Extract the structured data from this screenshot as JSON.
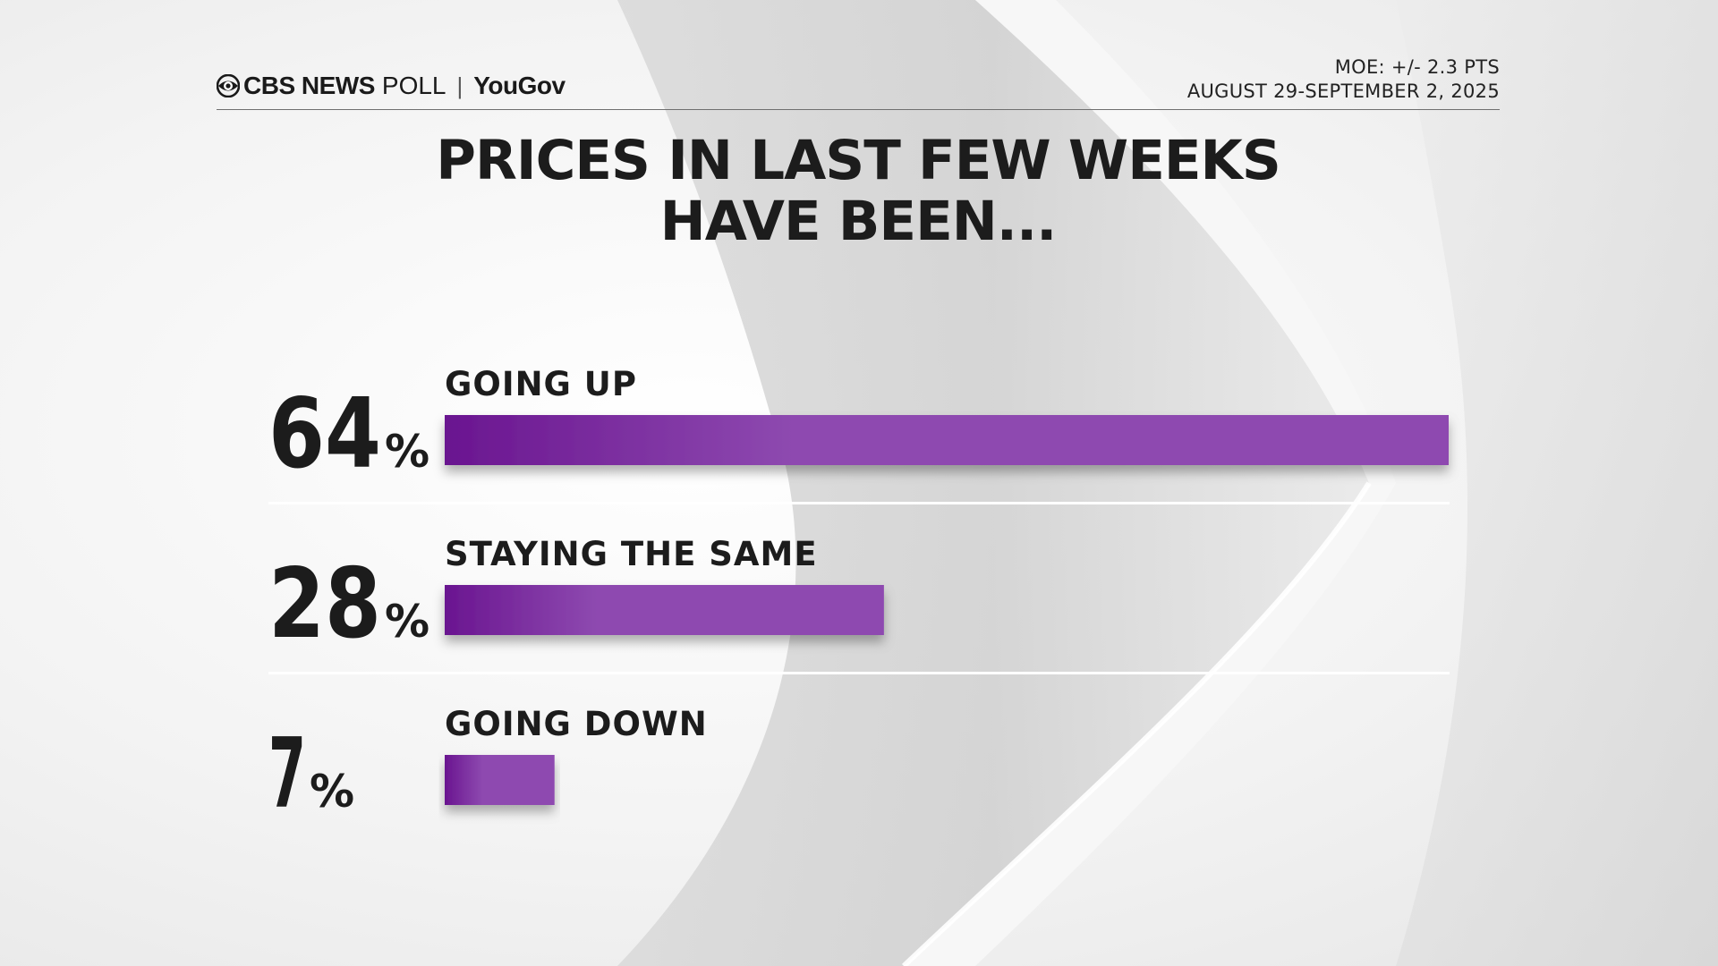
{
  "header": {
    "brand_cbs": "CBS NEWS",
    "brand_poll": "POLL",
    "brand_sep": "|",
    "brand_yougov": "YouGov",
    "logo_icon": "cbs-eye-icon",
    "moe": "MOE: +/- 2.3 PTS",
    "dates": "AUGUST 29-SEPTEMBER 2, 2025"
  },
  "colors": {
    "bar_dark": "#6a1590",
    "bar_light": "#8e4ab0",
    "text": "#1c1c1c",
    "divider": "#ffffff"
  },
  "chart_data": {
    "type": "bar",
    "orientation": "horizontal",
    "title_lines": [
      "PRICES IN LAST FEW WEEKS",
      "HAVE BEEN..."
    ],
    "categories": [
      "GOING UP",
      "STAYING THE SAME",
      "GOING DOWN"
    ],
    "values": [
      64,
      28,
      7
    ],
    "value_labels": [
      "64",
      "28",
      "7"
    ],
    "unit": "%",
    "xlim": [
      0,
      64
    ],
    "grid": false,
    "legend": "none"
  }
}
